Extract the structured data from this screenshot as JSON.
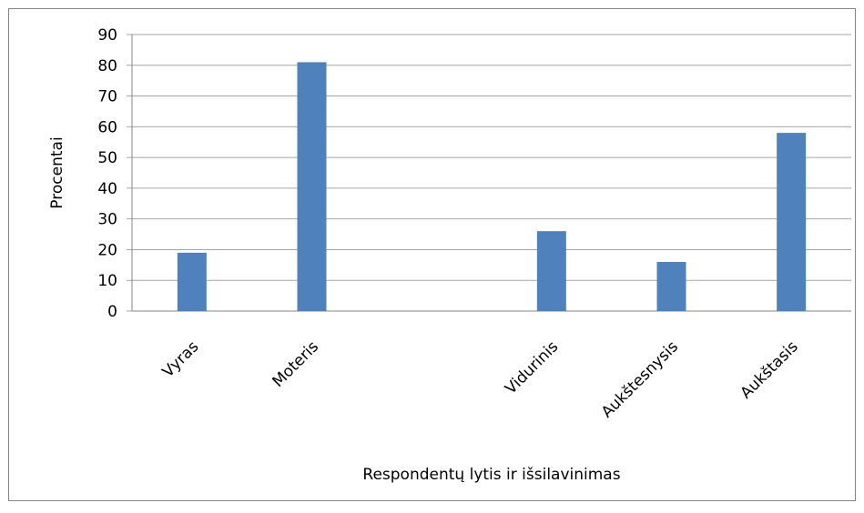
{
  "chart_data": {
    "type": "bar",
    "categories": [
      "Vyras",
      "Moteris",
      null,
      "Vidurinis",
      "Aukštesnysis",
      "Aukštasis"
    ],
    "values": [
      19,
      81,
      null,
      26,
      16,
      58
    ],
    "color": "#4f81bd",
    "y_label": "Procentai",
    "x_label": "Respondentų lytis ir išsilavinimas",
    "ylim": [
      0,
      90
    ],
    "yticks": [
      0,
      10,
      20,
      30,
      40,
      50,
      60,
      70,
      80,
      90
    ],
    "grid": true
  }
}
